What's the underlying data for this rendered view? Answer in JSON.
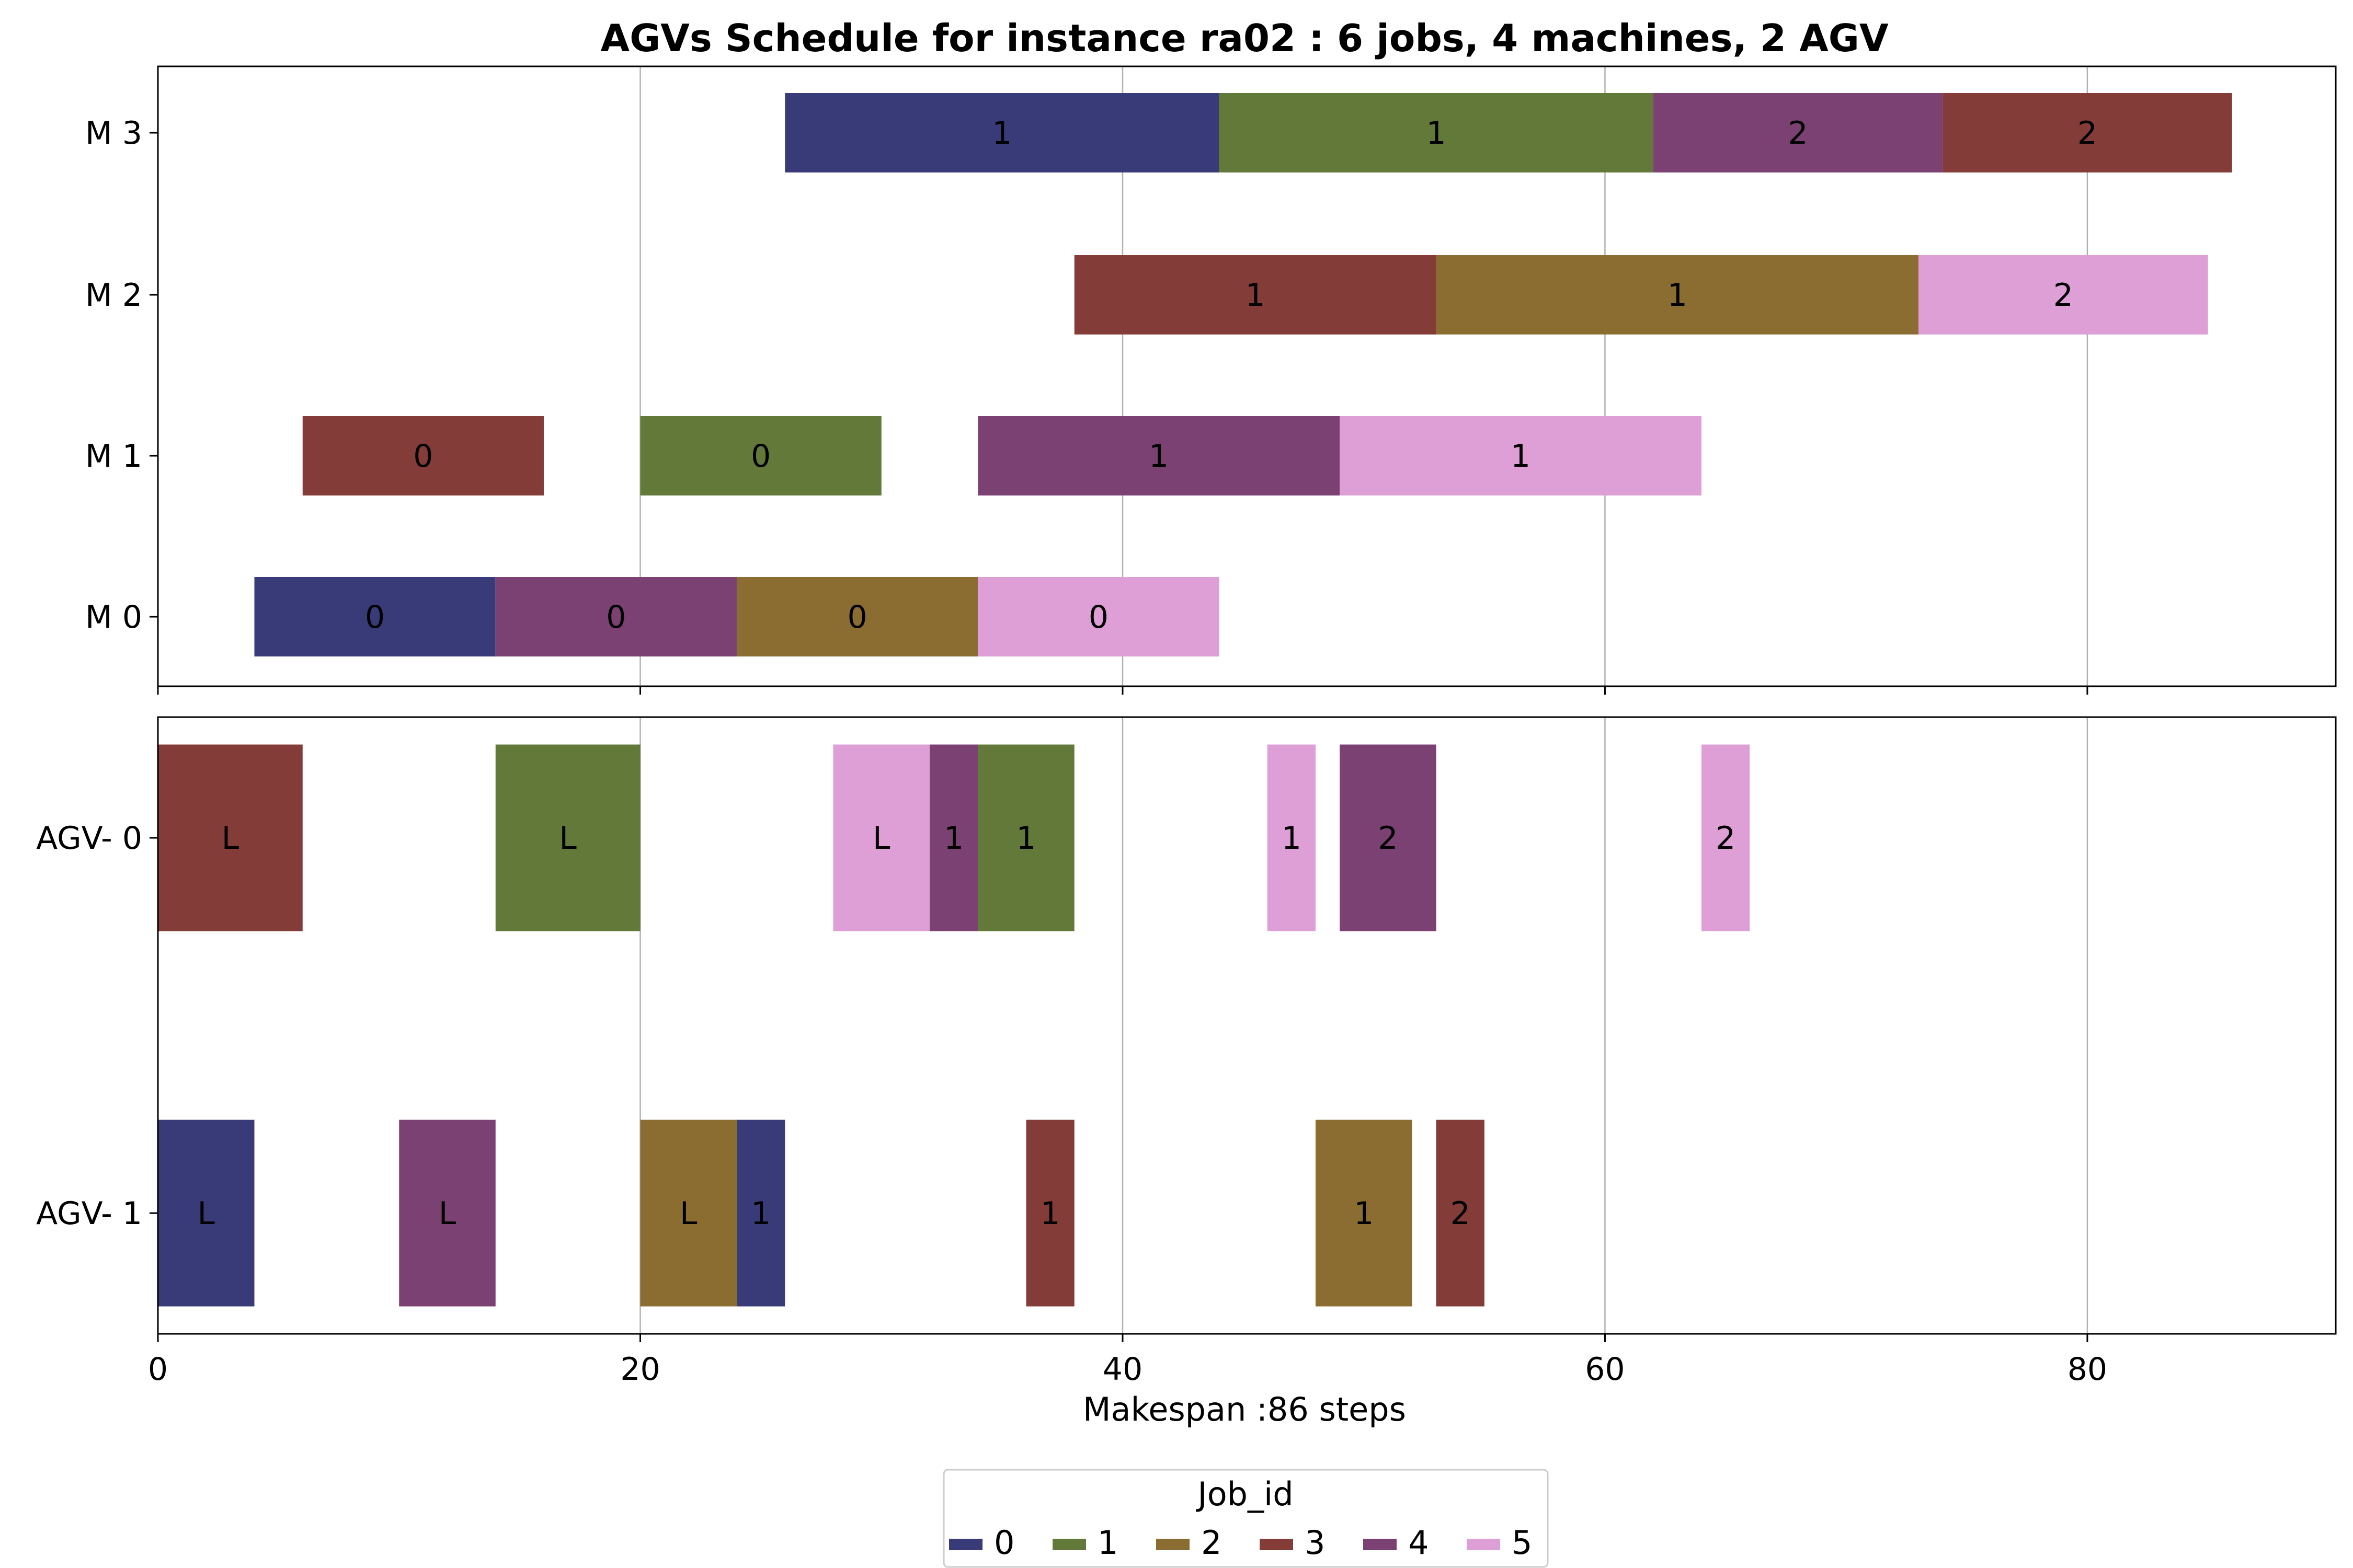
{
  "chart_data": {
    "type": "gantt",
    "title": "AGVs Schedule for instance ra02  : 6 jobs, 4 machines, 2 AGV",
    "xlabel": "Makespan :86 steps",
    "xlim": [
      0,
      90.3
    ],
    "xticks": [
      0,
      20,
      40,
      60,
      80
    ],
    "grid": "vertical",
    "legend": {
      "title": "Job_id",
      "placement": "bottom-center",
      "entries": [
        "0",
        "1",
        "2",
        "3",
        "4",
        "5"
      ]
    },
    "job_colors": {
      "0": "#393b79",
      "1": "#637939",
      "2": "#8c6d31",
      "3": "#843c39",
      "4": "#7b4173",
      "5": "#de9ed6"
    },
    "machines": {
      "rows": [
        "M 3",
        "M 2",
        "M 1",
        "M 0"
      ],
      "tasks": [
        {
          "row": "M 3",
          "job": 0,
          "start": 26,
          "end": 44,
          "label": "1"
        },
        {
          "row": "M 3",
          "job": 1,
          "start": 44,
          "end": 62,
          "label": "1"
        },
        {
          "row": "M 3",
          "job": 4,
          "start": 62,
          "end": 74,
          "label": "2"
        },
        {
          "row": "M 3",
          "job": 3,
          "start": 74,
          "end": 86,
          "label": "2"
        },
        {
          "row": "M 2",
          "job": 3,
          "start": 38,
          "end": 53,
          "label": "1"
        },
        {
          "row": "M 2",
          "job": 2,
          "start": 53,
          "end": 73,
          "label": "1"
        },
        {
          "row": "M 2",
          "job": 5,
          "start": 73,
          "end": 85,
          "label": "2"
        },
        {
          "row": "M 1",
          "job": 3,
          "start": 6,
          "end": 16,
          "label": "0"
        },
        {
          "row": "M 1",
          "job": 1,
          "start": 20,
          "end": 30,
          "label": "0"
        },
        {
          "row": "M 1",
          "job": 4,
          "start": 34,
          "end": 49,
          "label": "1"
        },
        {
          "row": "M 1",
          "job": 5,
          "start": 49,
          "end": 64,
          "label": "1"
        },
        {
          "row": "M 0",
          "job": 0,
          "start": 4,
          "end": 14,
          "label": "0"
        },
        {
          "row": "M 0",
          "job": 4,
          "start": 14,
          "end": 24,
          "label": "0"
        },
        {
          "row": "M 0",
          "job": 2,
          "start": 24,
          "end": 34,
          "label": "0"
        },
        {
          "row": "M 0",
          "job": 5,
          "start": 34,
          "end": 44,
          "label": "0"
        }
      ]
    },
    "agvs": {
      "rows": [
        "AGV- 0",
        "AGV- 1"
      ],
      "tasks": [
        {
          "row": "AGV- 0",
          "job": 3,
          "start": 0,
          "end": 6,
          "label": "L"
        },
        {
          "row": "AGV- 0",
          "job": 1,
          "start": 14,
          "end": 20,
          "label": "L"
        },
        {
          "row": "AGV- 0",
          "job": 5,
          "start": 28,
          "end": 32,
          "label": "L"
        },
        {
          "row": "AGV- 0",
          "job": 4,
          "start": 32,
          "end": 34,
          "label": "1"
        },
        {
          "row": "AGV- 0",
          "job": 1,
          "start": 34,
          "end": 38,
          "label": "1"
        },
        {
          "row": "AGV- 0",
          "job": 5,
          "start": 46,
          "end": 48,
          "label": "1"
        },
        {
          "row": "AGV- 0",
          "job": 4,
          "start": 49,
          "end": 53,
          "label": "2"
        },
        {
          "row": "AGV- 0",
          "job": 5,
          "start": 64,
          "end": 66,
          "label": "2"
        },
        {
          "row": "AGV- 1",
          "job": 0,
          "start": 0,
          "end": 4,
          "label": "L"
        },
        {
          "row": "AGV- 1",
          "job": 4,
          "start": 10,
          "end": 14,
          "label": "L"
        },
        {
          "row": "AGV- 1",
          "job": 2,
          "start": 20,
          "end": 24,
          "label": "L"
        },
        {
          "row": "AGV- 1",
          "job": 0,
          "start": 24,
          "end": 26,
          "label": "1"
        },
        {
          "row": "AGV- 1",
          "job": 3,
          "start": 36,
          "end": 38,
          "label": "1"
        },
        {
          "row": "AGV- 1",
          "job": 2,
          "start": 48,
          "end": 52,
          "label": "1"
        },
        {
          "row": "AGV- 1",
          "job": 3,
          "start": 53,
          "end": 55,
          "label": "2"
        }
      ]
    }
  }
}
